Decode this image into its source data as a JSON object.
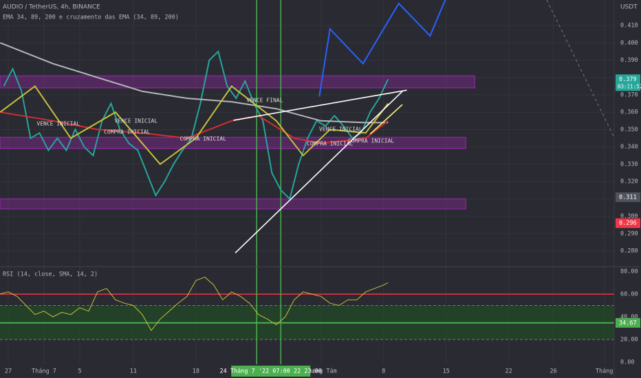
{
  "chart_data": {
    "type": "line",
    "title": "AUDIO / TetherUS, 4h, BINANCE",
    "subtitle": "EMA 34, 89, 200 e cruzamento das EMA (34, 89, 200)",
    "currency": "USDT",
    "grid": true,
    "xlim": [
      -0.92,
      67.8
    ],
    "xticks": [
      {
        "value": 0,
        "label": "27"
      },
      {
        "value": 4,
        "label": "Tháng 7"
      },
      {
        "value": 8,
        "label": "5"
      },
      {
        "value": 14,
        "label": "11"
      },
      {
        "value": 21,
        "label": "18"
      },
      {
        "value": 35,
        "label": "Tháng Tám"
      },
      {
        "value": 42,
        "label": "8"
      },
      {
        "value": 49,
        "label": "15"
      },
      {
        "value": 56,
        "label": "22"
      },
      {
        "value": 61,
        "label": "26"
      },
      {
        "value": 66.7,
        "label": "Tháng"
      }
    ],
    "ylim": [
      0.2709,
      0.4247
    ],
    "yticks": [
      {
        "value": 0.28,
        "label": "0.280"
      },
      {
        "value": 0.29,
        "label": "0.290"
      },
      {
        "value": 0.3,
        "label": "0.300"
      },
      {
        "value": 0.31,
        "label": "0.310"
      },
      {
        "value": 0.32,
        "label": "0.320"
      },
      {
        "value": 0.33,
        "label": "0.330"
      },
      {
        "value": 0.34,
        "label": "0.340"
      },
      {
        "value": 0.35,
        "label": "0.350"
      },
      {
        "value": 0.36,
        "label": "0.360"
      },
      {
        "value": 0.37,
        "label": "0.370"
      },
      {
        "value": 0.38,
        "label": "0.380"
      },
      {
        "value": 0.39,
        "label": "0.390"
      },
      {
        "value": 0.4,
        "label": "0.400"
      },
      {
        "value": 0.41,
        "label": "0.410"
      }
    ],
    "series": [
      {
        "color": "#26a69a",
        "x": [
          -0.5,
          0.5,
          1.5,
          2.5,
          3.5,
          4.5,
          5.5,
          6.5,
          7.5,
          8.5,
          9.5,
          10.5,
          11.5,
          12.5,
          13.5,
          14.5,
          15.5,
          16.5,
          17.5,
          18.5,
          19.5,
          20.5,
          21.5,
          22.5,
          23.5,
          24.5,
          25.5,
          26.5,
          27.5,
          28.5,
          29.5,
          30.5,
          31.5,
          32.5,
          33.5,
          34.5,
          35.5,
          36.5,
          37.5,
          38.5,
          39.5,
          40.5,
          41.5,
          42.5
        ],
        "values": [
          0.375,
          0.385,
          0.372,
          0.345,
          0.348,
          0.338,
          0.345,
          0.338,
          0.35,
          0.34,
          0.335,
          0.355,
          0.365,
          0.35,
          0.342,
          0.338,
          0.325,
          0.312,
          0.32,
          0.33,
          0.338,
          0.345,
          0.365,
          0.39,
          0.395,
          0.375,
          0.368,
          0.378,
          0.365,
          0.355,
          0.325,
          0.315,
          0.31,
          0.33,
          0.345,
          0.355,
          0.352,
          0.358,
          0.352,
          0.345,
          0.348,
          0.36,
          0.368,
          0.379
        ]
      },
      {
        "color": "#b7b7bd",
        "x": [
          -0.9,
          5,
          10,
          15,
          20,
          25,
          30,
          35,
          40,
          42.5
        ],
        "values": [
          0.4,
          0.388,
          0.38,
          0.372,
          0.368,
          0.366,
          0.362,
          0.355,
          0.354,
          0.354
        ]
      },
      {
        "color": "#d32f2f",
        "x": [
          -0.9,
          5,
          10,
          15,
          20,
          25,
          28,
          32,
          35,
          40,
          42.5
        ],
        "values": [
          0.36,
          0.355,
          0.35,
          0.348,
          0.345,
          0.355,
          0.358,
          0.345,
          0.342,
          0.345,
          0.355
        ]
      },
      {
        "color": "#c6c23a",
        "x": [
          -0.9,
          3,
          7,
          12,
          17,
          21,
          25,
          30,
          33,
          36,
          40,
          42.5
        ],
        "values": [
          0.36,
          0.375,
          0.345,
          0.36,
          0.33,
          0.345,
          0.375,
          0.355,
          0.335,
          0.35,
          0.348,
          0.365
        ]
      },
      {
        "color": "#2962ff",
        "x": [
          34.8,
          36,
          39.7,
          43.7,
          47.2,
          48.9
        ],
        "values": [
          0.369,
          0.408,
          0.388,
          0.4227,
          0.404,
          0.4247
        ]
      }
    ],
    "zones": [
      {
        "color": "#9c27b0",
        "xlim": [
          -0.92,
          52.2
        ],
        "ylim": [
          0.374,
          0.381
        ]
      },
      {
        "color": "#9c27b0",
        "xlim": [
          -0.92,
          51.2
        ],
        "ylim": [
          0.339,
          0.3455
        ]
      },
      {
        "color": "#9c27b0",
        "xlim": [
          -0.92,
          51.2
        ],
        "ylim": [
          0.3042,
          0.31
        ]
      }
    ],
    "trendlines": [
      {
        "color": "#ffffff",
        "x": [
          25.4,
          44.1
        ],
        "y": [
          0.2788,
          0.372
        ]
      },
      {
        "color": "#ffffff",
        "x": [
          25.2,
          44.6
        ],
        "y": [
          0.3553,
          0.3727
        ]
      },
      {
        "color": "#f5f57a",
        "x": [
          40.5,
          44.1
        ],
        "y": [
          0.3474,
          0.3644
        ]
      }
    ],
    "vlines": {
      "color": "#4caf50",
      "x": [
        27.8,
        30.5
      ],
      "label": "24 Tháng 7 '22   07:00   22   23:00"
    },
    "annotations": [
      {
        "text": "VENCE INICIAL",
        "x": 5.6,
        "y": 0.3533
      },
      {
        "text": "VENCE INICIAL",
        "x": 14.3,
        "y": 0.3549
      },
      {
        "text": "COMPRA INICIAL",
        "x": 13.3,
        "y": 0.3486
      },
      {
        "text": "COMPRA INICIAL",
        "x": 21.8,
        "y": 0.3446
      },
      {
        "text": "VENCE FINAL",
        "x": 28.7,
        "y": 0.3668
      },
      {
        "text": "VENCE INICIAL",
        "x": 37.2,
        "y": 0.3502
      },
      {
        "text": "COMPRA INICIAL",
        "x": 36,
        "y": 0.3418
      },
      {
        "text": "COMPRA INICIAL",
        "x": 40.6,
        "y": 0.3434
      }
    ],
    "price_labels": [
      {
        "value": 0.379,
        "color": "#26a69a"
      },
      {
        "value": 0.311,
        "color": "#50535e"
      },
      {
        "value": 0.296,
        "color": "#f23645"
      }
    ],
    "countdown": "03:11:52",
    "rsi": {
      "title": "RSI (14, close, SMA, 14, 2)",
      "color": "#c6c23a",
      "ylim": [
        -1.8,
        84.2
      ],
      "yticks": [
        {
          "value": 0,
          "label": "0.00"
        },
        {
          "value": 20,
          "label": "20.00"
        },
        {
          "value": 40,
          "label": "40.00"
        },
        {
          "value": 60,
          "label": "60.00"
        },
        {
          "value": 80,
          "label": "80.00"
        }
      ],
      "x": [
        -1,
        0,
        1,
        2,
        3,
        4,
        5,
        6,
        7,
        8,
        9,
        10,
        11,
        12,
        13,
        14,
        15,
        16,
        17,
        18,
        19,
        20,
        21,
        22,
        23,
        24,
        25,
        26,
        27,
        28,
        29,
        30,
        31,
        32,
        33,
        34,
        35,
        36,
        37,
        38,
        39,
        40,
        41,
        42,
        42.5
      ],
      "values": [
        60,
        62,
        58,
        50,
        42,
        45,
        40,
        44,
        42,
        48,
        45,
        62,
        65,
        55,
        52,
        50,
        42,
        28,
        38,
        45,
        52,
        58,
        72,
        75,
        68,
        55,
        62,
        58,
        52,
        42,
        38,
        33,
        40,
        55,
        62,
        60,
        58,
        52,
        50,
        55,
        55,
        62,
        65,
        68,
        70
      ],
      "upper_level": {
        "value": 60,
        "color": "#f23645"
      },
      "band": [
        20,
        50
      ],
      "band_color": "#1b5e20",
      "current": 34.67,
      "current_color": "#4caf50"
    }
  }
}
